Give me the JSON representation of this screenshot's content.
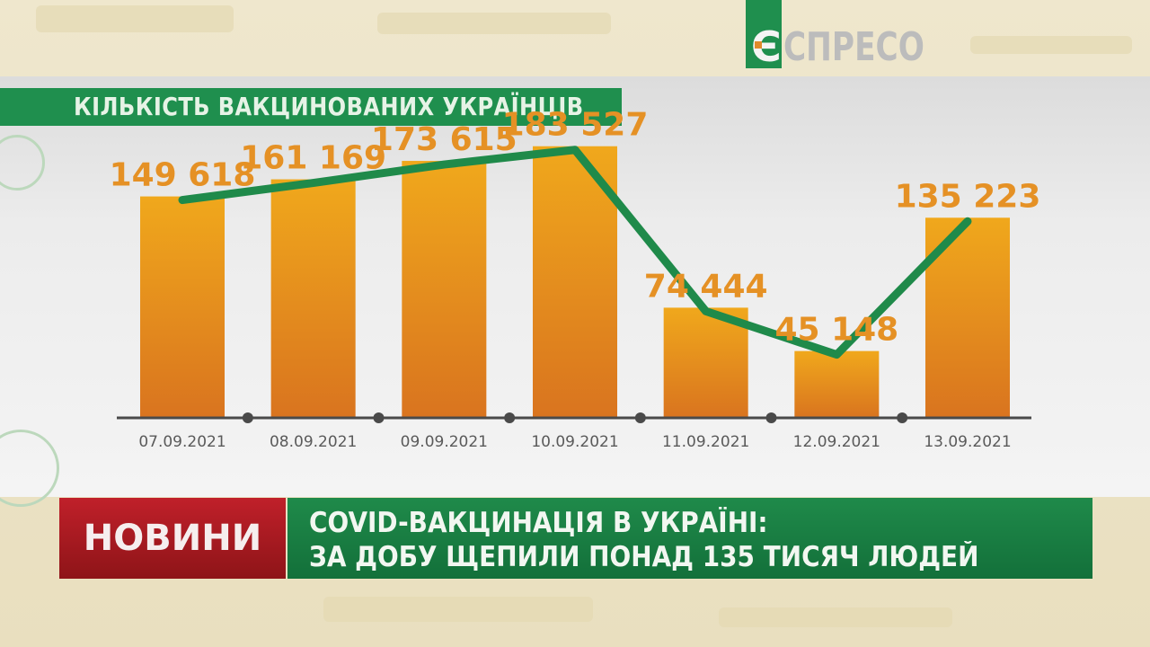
{
  "channel": {
    "logo_letter": "Є",
    "logo_text": "СПРЕСО"
  },
  "chart_data": {
    "type": "bar",
    "title": "КІЛЬКІСТЬ ВАКЦИНОВАНИХ УКРАЇНЦІВ",
    "categories": [
      "07.09.2021",
      "08.09.2021",
      "09.09.2021",
      "10.09.2021",
      "11.09.2021",
      "12.09.2021",
      "13.09.2021"
    ],
    "values": [
      149618,
      161169,
      173615,
      183527,
      74444,
      45148,
      135223
    ],
    "value_labels": [
      "149 618",
      "161 169",
      "173 615",
      "183 527",
      "74 444",
      "45 148",
      "135 223"
    ],
    "overlay_line": true,
    "xlabel": "",
    "ylabel": "",
    "grid": false,
    "colors": {
      "bar_top": "#f0a81c",
      "bar_bottom": "#d9741f",
      "line": "#1f8a4a",
      "label": "#e59125",
      "axis": "#4a4a4a"
    }
  },
  "lower_third": {
    "tag": "НОВИНИ",
    "headline_line1": "COVID-ВАКЦИНАЦІЯ В УКРАЇНІ:",
    "headline_line2": "ЗА ДОБУ ЩЕПИЛИ ПОНАД 135 ТИСЯЧ ЛЮДЕЙ"
  }
}
